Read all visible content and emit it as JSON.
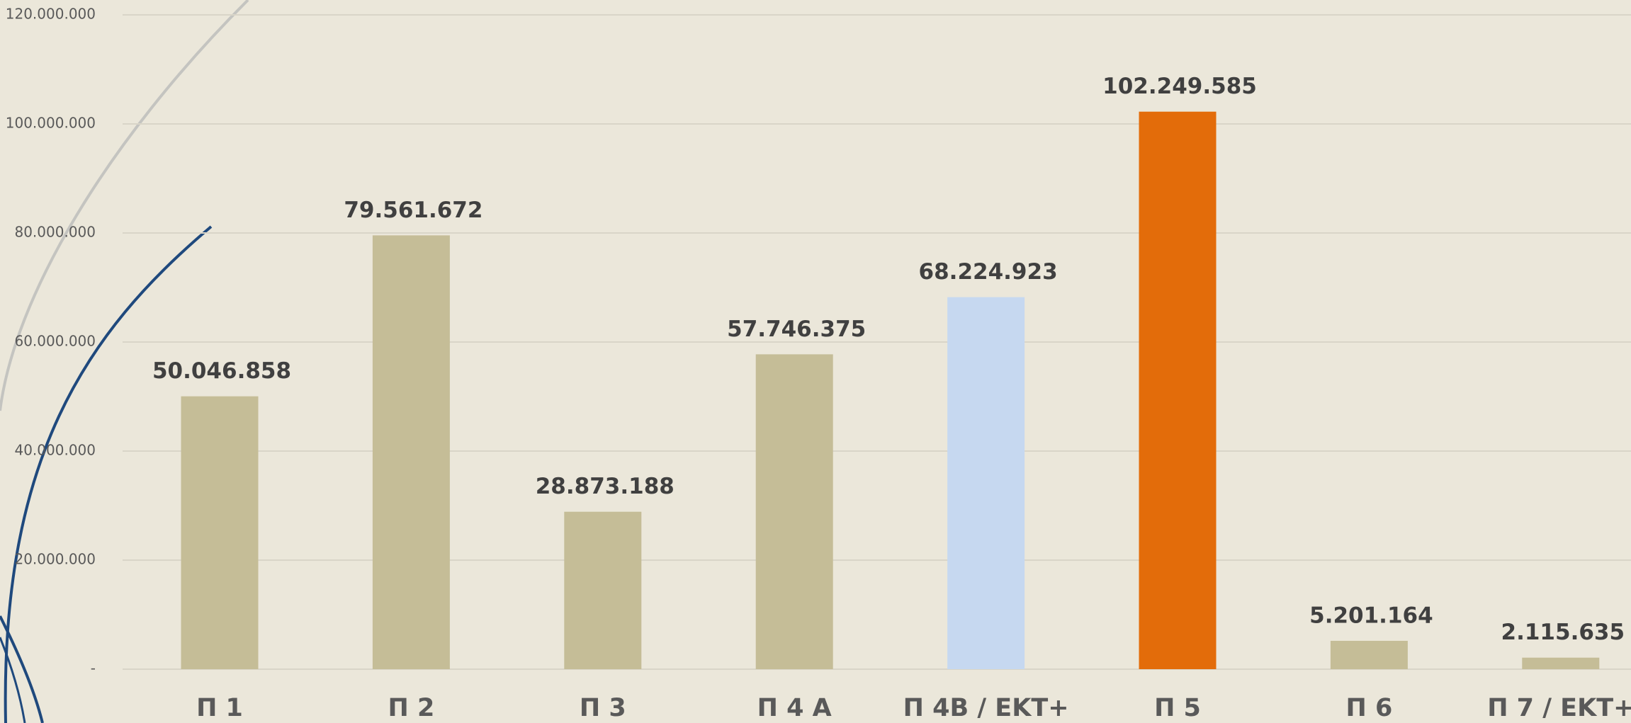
{
  "chart_data": {
    "type": "bar",
    "categories": [
      "Π 1",
      "Π 2",
      "Π 3",
      "Π 4 A",
      "Π 4B / ΕΚΤ+",
      "Π 5",
      "Π 6",
      "Π 7 / ΕΚΤ+"
    ],
    "values": [
      50046858,
      79561672,
      28873188,
      57746375,
      68224923,
      102249585,
      5201164,
      2115635
    ],
    "value_labels": [
      "50.046.858",
      "79.561.672",
      "28.873.188",
      "57.746.375",
      "68.224.923",
      "102.249.585",
      "5.201.164",
      "2.115.635"
    ],
    "colors": [
      "#c5bd97",
      "#c5bd97",
      "#c5bd97",
      "#c5bd97",
      "#c6d8f0",
      "#e36c0a",
      "#c5bd97",
      "#c5bd97"
    ],
    "ylim": [
      0,
      120000000
    ],
    "yticks": [
      {
        "value": 0,
        "label": "-"
      },
      {
        "value": 20000000,
        "label": "20.000.000"
      },
      {
        "value": 40000000,
        "label": "40.000.000"
      },
      {
        "value": 60000000,
        "label": "60.000.000"
      },
      {
        "value": 80000000,
        "label": "80.000.000"
      },
      {
        "value": 100000000,
        "label": "100.000.000"
      },
      {
        "value": 120000000,
        "label": "120.000.000"
      }
    ],
    "grid": true
  }
}
